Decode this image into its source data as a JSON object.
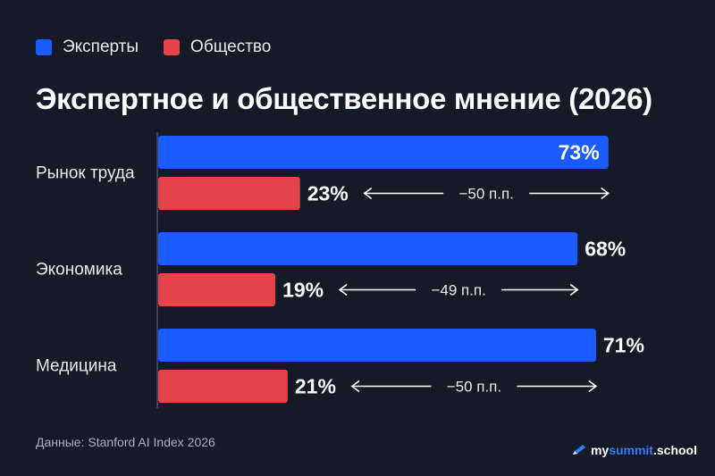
{
  "legend": [
    {
      "label": "Эксперты",
      "color": "#1a5cff"
    },
    {
      "label": "Общество",
      "color": "#e5424a"
    }
  ],
  "title": "Экспертное и общественное мнение (2026)",
  "footer": {
    "source": "Данные: Stanford AI Index 2026",
    "brand_part1": "my",
    "brand_part2": "summit",
    "brand_part3": ".school",
    "brand_icon": "pencil-icon"
  },
  "chart_data": {
    "type": "bar",
    "orientation": "horizontal",
    "categories": [
      "Рынок труда",
      "Экономика",
      "Медицина"
    ],
    "series": [
      {
        "name": "Эксперты",
        "color": "#1a5cff",
        "values": [
          73,
          68,
          71
        ],
        "labels": [
          "73%",
          "68%",
          "71%"
        ]
      },
      {
        "name": "Общество",
        "color": "#e5424a",
        "values": [
          23,
          19,
          21
        ],
        "labels": [
          "23%",
          "19%",
          "21%"
        ]
      }
    ],
    "differences": [
      "−50 п.п.",
      "−49 п.п.",
      "−50 п.п."
    ],
    "xlim": [
      0,
      100
    ],
    "grid": false,
    "legend_position": "top-left"
  }
}
